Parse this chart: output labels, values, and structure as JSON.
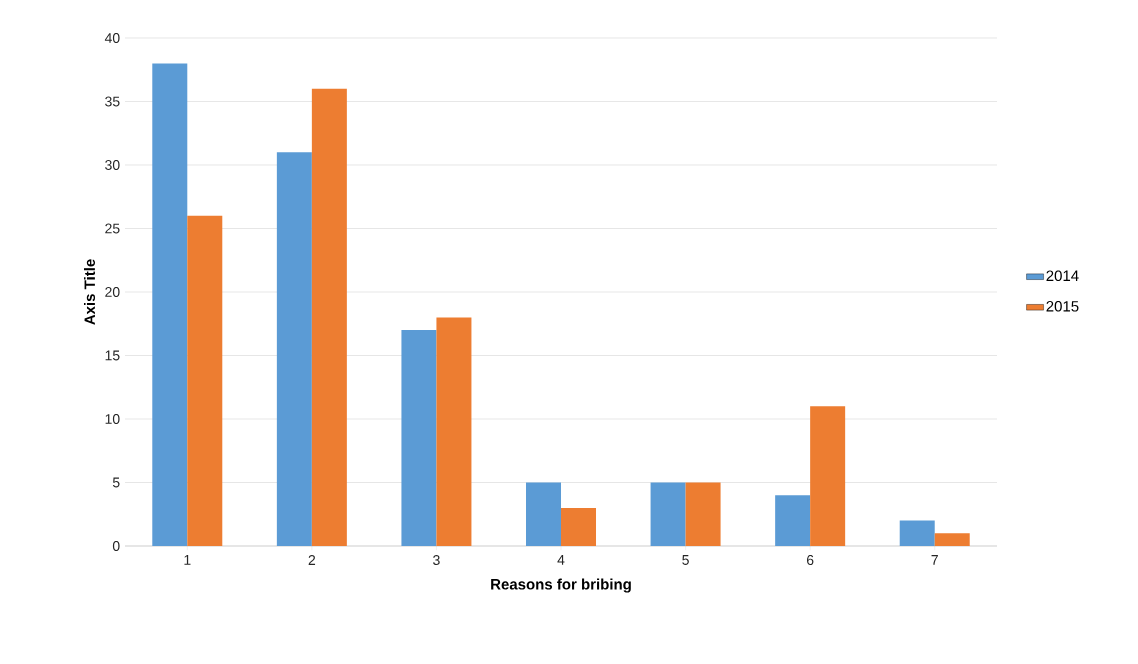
{
  "chart_data": {
    "type": "bar",
    "xlabel": "Reasons for bribing",
    "ylabel": "Axis Title",
    "categories": [
      "1",
      "2",
      "3",
      "4",
      "5",
      "6",
      "7"
    ],
    "series": [
      {
        "name": "2014",
        "color": "#5b9bd5",
        "values": [
          38,
          31,
          17,
          5,
          5,
          4,
          2
        ]
      },
      {
        "name": "2015",
        "color": "#ed7d31",
        "values": [
          26,
          36,
          18,
          3,
          5,
          11,
          1
        ]
      }
    ],
    "ylim": [
      0,
      40
    ],
    "yticks": [
      0,
      5,
      10,
      15,
      20,
      25,
      30,
      35,
      40
    ],
    "grid": "y",
    "legend": "right"
  }
}
